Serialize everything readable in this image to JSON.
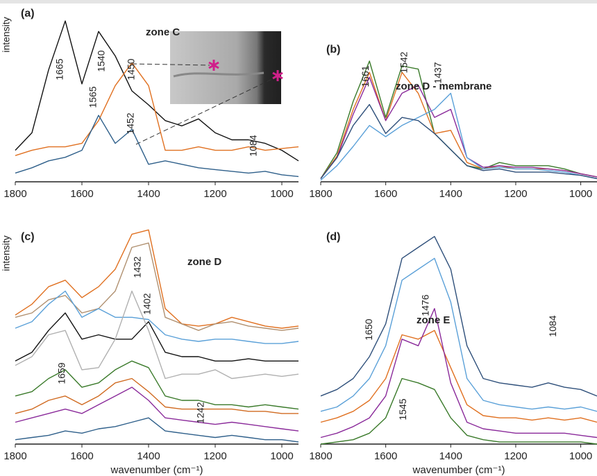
{
  "chart_data": [
    {
      "type": "line",
      "panel_label": "(a)",
      "title": "zone C",
      "ylabel": "intensity",
      "x": [
        1800,
        1750,
        1700,
        1650,
        1600,
        1550,
        1500,
        1450,
        1400,
        1350,
        1300,
        1250,
        1200,
        1150,
        1100,
        1050,
        1000,
        950
      ],
      "series": [
        {
          "color": "#111111",
          "values": [
            18,
            28,
            64,
            92,
            56,
            86,
            72,
            52,
            44,
            35,
            32,
            36,
            28,
            24,
            24,
            22,
            18,
            12
          ]
        },
        {
          "color": "#e07020",
          "values": [
            15,
            18,
            20,
            20,
            22,
            35,
            55,
            68,
            55,
            18,
            18,
            20,
            18,
            18,
            20,
            18,
            19,
            20
          ]
        },
        {
          "color": "#2e5f8a",
          "values": [
            5,
            8,
            12,
            14,
            18,
            38,
            22,
            30,
            10,
            12,
            10,
            8,
            7,
            6,
            5,
            6,
            4,
            3
          ]
        }
      ],
      "xlim": [
        1800,
        950
      ],
      "ylim": [
        0,
        100
      ],
      "xticks": [
        1800,
        1600,
        1400,
        1200,
        1000
      ],
      "annotations": [
        "1665",
        "1540",
        "1450",
        "1565",
        "1452",
        "1084"
      ]
    },
    {
      "type": "line",
      "panel_label": "(b)",
      "title": "zone D - membrane",
      "x": [
        1800,
        1750,
        1700,
        1650,
        1600,
        1550,
        1500,
        1450,
        1400,
        1350,
        1300,
        1250,
        1200,
        1150,
        1100,
        1050,
        1000,
        950
      ],
      "series": [
        {
          "color": "#3a7a2a",
          "values": [
            2,
            18,
            50,
            75,
            40,
            72,
            70,
            30,
            20,
            10,
            8,
            12,
            10,
            10,
            10,
            8,
            5,
            3
          ]
        },
        {
          "color": "#e07020",
          "values": [
            2,
            16,
            45,
            68,
            38,
            68,
            55,
            30,
            32,
            12,
            8,
            10,
            8,
            8,
            8,
            7,
            5,
            3
          ]
        },
        {
          "color": "#8a2a9a",
          "values": [
            2,
            15,
            42,
            65,
            38,
            55,
            60,
            40,
            45,
            15,
            9,
            10,
            9,
            9,
            8,
            7,
            5,
            3
          ]
        },
        {
          "color": "#5aa0d8",
          "values": [
            1,
            10,
            22,
            35,
            28,
            35,
            40,
            45,
            55,
            15,
            8,
            9,
            8,
            8,
            7,
            6,
            4,
            2
          ]
        },
        {
          "color": "#2e4f7a",
          "values": [
            2,
            15,
            35,
            48,
            30,
            40,
            38,
            30,
            20,
            10,
            7,
            8,
            6,
            6,
            6,
            5,
            4,
            2
          ]
        }
      ],
      "xlim": [
        1800,
        950
      ],
      "ylim": [
        0,
        100
      ],
      "xticks": [
        1800,
        1600,
        1400,
        1200,
        1000
      ],
      "annotations": [
        "1661",
        "1542",
        "1437"
      ]
    },
    {
      "type": "line",
      "panel_label": "(c)",
      "title": "zone D",
      "ylabel": "intensity",
      "xlabel": "wavenumber (cm⁻¹)",
      "x": [
        1800,
        1750,
        1700,
        1650,
        1600,
        1550,
        1500,
        1450,
        1400,
        1350,
        1300,
        1250,
        1200,
        1150,
        1100,
        1050,
        1000,
        950
      ],
      "series": [
        {
          "color": "#e07020",
          "values": [
            59,
            64,
            72,
            75,
            67,
            72,
            80,
            96,
            98,
            62,
            55,
            54,
            55,
            58,
            56,
            54,
            53,
            54
          ]
        },
        {
          "color": "#b09070",
          "values": [
            58,
            60,
            66,
            68,
            60,
            62,
            70,
            90,
            92,
            58,
            55,
            52,
            55,
            56,
            54,
            53,
            52,
            53
          ]
        },
        {
          "color": "#5aa0d8",
          "values": [
            53,
            56,
            64,
            70,
            58,
            62,
            58,
            58,
            57,
            50,
            48,
            47,
            48,
            48,
            47,
            46,
            46,
            47
          ]
        },
        {
          "color": "#111111",
          "values": [
            38,
            42,
            52,
            60,
            48,
            50,
            48,
            48,
            56,
            42,
            40,
            40,
            38,
            38,
            39,
            38,
            38,
            38
          ]
        },
        {
          "color": "#b0b0b0",
          "values": [
            36,
            40,
            50,
            52,
            34,
            35,
            48,
            70,
            52,
            30,
            32,
            32,
            34,
            30,
            31,
            32,
            31,
            32
          ]
        },
        {
          "color": "#3a7a2a",
          "values": [
            22,
            24,
            30,
            34,
            26,
            28,
            34,
            38,
            35,
            22,
            20,
            20,
            18,
            18,
            17,
            18,
            17,
            16
          ]
        },
        {
          "color": "#d06a20",
          "values": [
            14,
            16,
            20,
            22,
            18,
            22,
            28,
            30,
            24,
            17,
            16,
            16,
            16,
            16,
            15,
            15,
            14,
            14
          ]
        },
        {
          "color": "#8a2a9a",
          "values": [
            10,
            12,
            14,
            16,
            14,
            18,
            22,
            26,
            20,
            12,
            11,
            10,
            9,
            10,
            9,
            8,
            7,
            6
          ]
        },
        {
          "color": "#2e5f8a",
          "values": [
            2,
            3,
            4,
            6,
            5,
            7,
            8,
            10,
            12,
            6,
            5,
            4,
            3,
            4,
            3,
            2,
            2,
            1
          ]
        }
      ],
      "xlim": [
        1800,
        950
      ],
      "ylim": [
        0,
        100
      ],
      "xticks": [
        1800,
        1600,
        1400,
        1200,
        1000
      ],
      "annotations": [
        "1432",
        "1402",
        "1659",
        "1242"
      ]
    },
    {
      "type": "line",
      "panel_label": "(d)",
      "title": "zone E",
      "xlabel": "wavenumber (cm⁻¹)",
      "x": [
        1800,
        1750,
        1700,
        1650,
        1600,
        1550,
        1500,
        1450,
        1400,
        1350,
        1300,
        1250,
        1200,
        1150,
        1100,
        1050,
        1000,
        950
      ],
      "series": [
        {
          "color": "#2e4f7a",
          "values": [
            22,
            25,
            30,
            40,
            55,
            85,
            90,
            95,
            80,
            45,
            30,
            28,
            27,
            26,
            28,
            26,
            25,
            22
          ]
        },
        {
          "color": "#5aa0d8",
          "values": [
            15,
            17,
            22,
            30,
            45,
            75,
            80,
            85,
            65,
            30,
            20,
            18,
            17,
            16,
            17,
            16,
            17,
            15
          ]
        },
        {
          "color": "#e07020",
          "values": [
            10,
            12,
            15,
            20,
            30,
            50,
            48,
            52,
            35,
            18,
            13,
            12,
            12,
            11,
            12,
            11,
            12,
            10
          ]
        },
        {
          "color": "#8a2a9a",
          "values": [
            3,
            5,
            8,
            12,
            22,
            48,
            45,
            62,
            28,
            10,
            7,
            6,
            5,
            5,
            5,
            5,
            4,
            3
          ]
        },
        {
          "color": "#3a7a2a",
          "values": [
            0,
            1,
            2,
            5,
            12,
            30,
            28,
            25,
            12,
            4,
            2,
            1,
            1,
            1,
            1,
            1,
            1,
            0
          ]
        }
      ],
      "xlim": [
        1800,
        950
      ],
      "ylim": [
        0,
        100
      ],
      "xticks": [
        1800,
        1600,
        1400,
        1200,
        1000
      ],
      "annotations": [
        "1650",
        "1476",
        "1545",
        "1084"
      ]
    }
  ]
}
